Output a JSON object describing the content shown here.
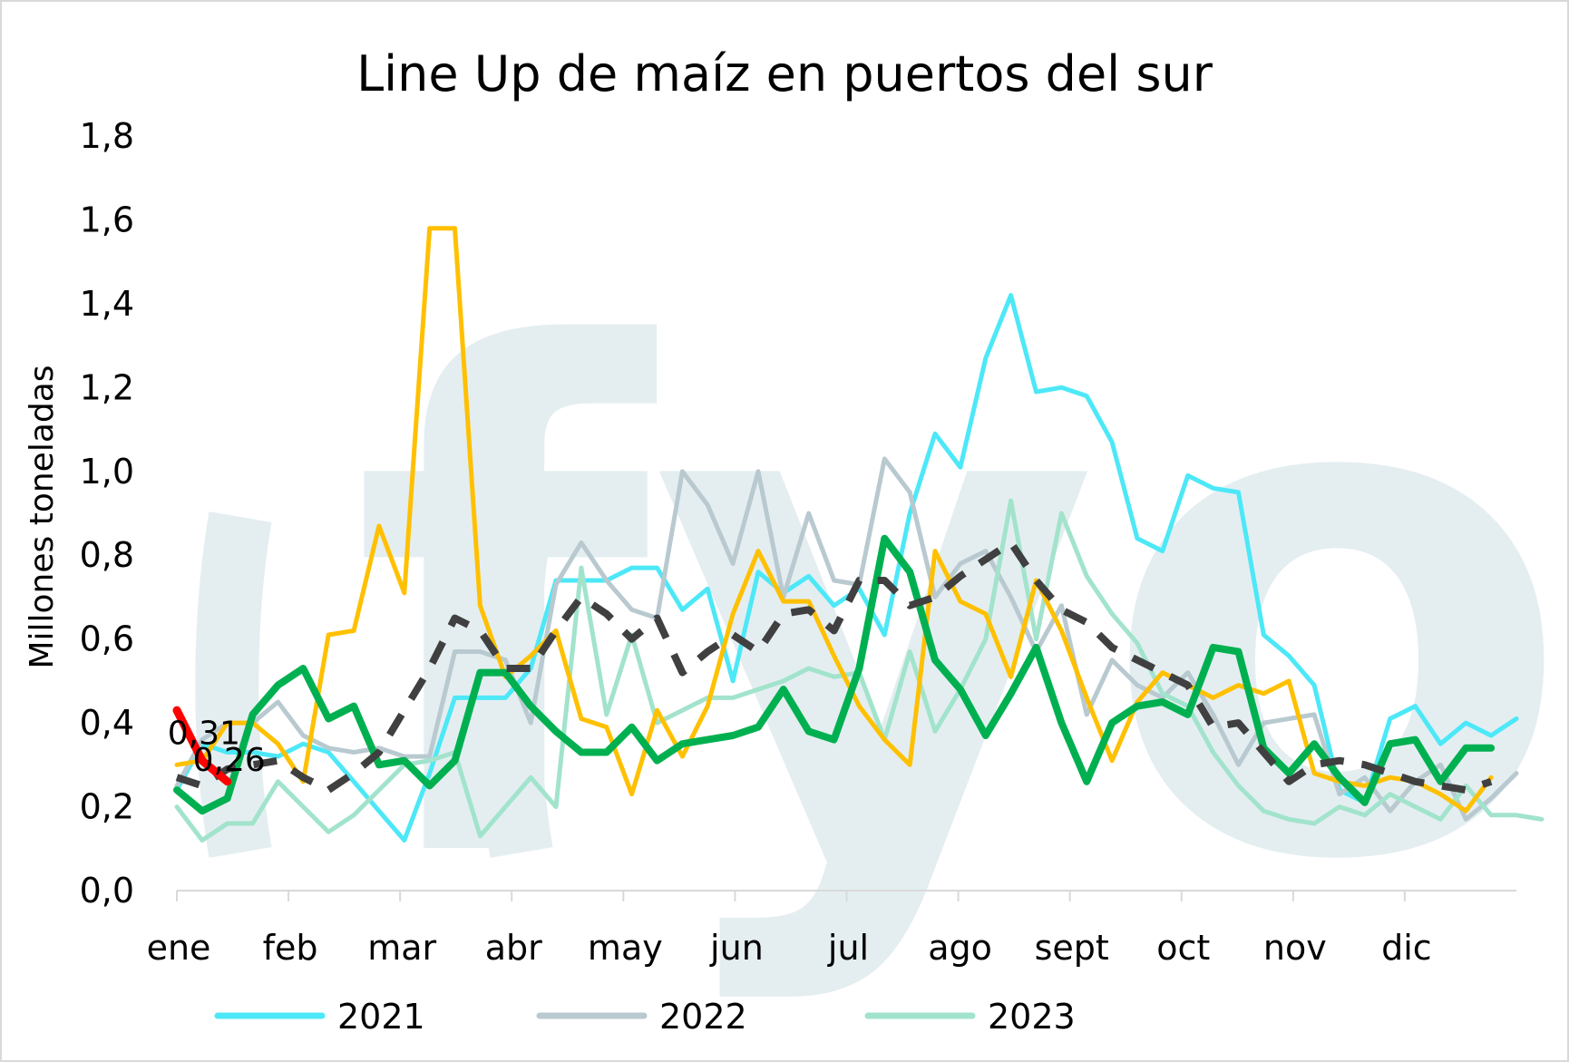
{
  "chart_data": {
    "type": "line",
    "title": "Line Up de maíz en puertos del sur",
    "ylabel": "Millones toneladas",
    "xlabel": "",
    "ylim": [
      0,
      1.8
    ],
    "yticks": [
      "0,0",
      "0,2",
      "0,4",
      "0,6",
      "0,8",
      "1,0",
      "1,2",
      "1,4",
      "1,6",
      "1,8"
    ],
    "months": [
      "ene",
      "feb",
      "mar",
      "abr",
      "may",
      "jun",
      "jul",
      "ago",
      "sept",
      "oct",
      "nov",
      "dic"
    ],
    "week_count": 52,
    "watermark": "fyo",
    "data_labels": [
      "0,31",
      "0,26"
    ],
    "series": [
      {
        "name": "2021",
        "color": "#4de8f7",
        "width": 5,
        "dash": "",
        "values": [
          0.24,
          0.35,
          0.33,
          0.33,
          0.32,
          0.35,
          0.33,
          0.26,
          0.19,
          0.12,
          0.28,
          0.46,
          0.46,
          0.46,
          0.53,
          0.74,
          0.74,
          0.74,
          0.77,
          0.77,
          0.67,
          0.72,
          0.5,
          0.76,
          0.71,
          0.75,
          0.68,
          0.72,
          0.61,
          0.9,
          1.09,
          1.01,
          1.27,
          1.42,
          1.19,
          1.2,
          1.18,
          1.07,
          0.84,
          0.81,
          0.99,
          0.96,
          0.95,
          0.61,
          0.56,
          0.49,
          0.24,
          0.21,
          0.41,
          0.44,
          0.35,
          0.4,
          0.37,
          0.41
        ]
      },
      {
        "name": "2022",
        "color": "#b9c9d0",
        "width": 5,
        "dash": "",
        "values": [
          0.25,
          0.36,
          0.4,
          0.4,
          0.45,
          0.37,
          0.34,
          0.33,
          0.34,
          0.32,
          0.32,
          0.57,
          0.57,
          0.55,
          0.4,
          0.73,
          0.83,
          0.74,
          0.67,
          0.65,
          1.0,
          0.92,
          0.78,
          1.0,
          0.7,
          0.9,
          0.74,
          0.73,
          1.03,
          0.95,
          0.7,
          0.78,
          0.81,
          0.7,
          0.57,
          0.68,
          0.42,
          0.55,
          0.49,
          0.46,
          0.52,
          0.42,
          0.3,
          0.4,
          0.41,
          0.42,
          0.23,
          0.27,
          0.19,
          0.26,
          0.3,
          0.17,
          0.22,
          0.28
        ]
      },
      {
        "name": "2023",
        "color": "#a2e3cc",
        "width": 5,
        "dash": "",
        "values": [
          0.2,
          0.12,
          0.16,
          0.16,
          0.26,
          0.2,
          0.14,
          0.18,
          0.24,
          0.3,
          0.31,
          0.33,
          0.13,
          0.2,
          0.27,
          0.2,
          0.77,
          0.42,
          0.61,
          0.4,
          0.43,
          0.46,
          0.46,
          0.48,
          0.5,
          0.53,
          0.51,
          0.52,
          0.36,
          0.57,
          0.38,
          0.48,
          0.6,
          0.93,
          0.6,
          0.9,
          0.75,
          0.66,
          0.59,
          0.47,
          0.44,
          0.33,
          0.25,
          0.19,
          0.17,
          0.16,
          0.2,
          0.18,
          0.23,
          0.2,
          0.17,
          0.25,
          0.18,
          0.18,
          0.17
        ]
      },
      {
        "name": "",
        "color": "#ffc000",
        "width": 5,
        "dash": "",
        "values": [
          0.3,
          0.31,
          0.4,
          0.4,
          0.35,
          0.26,
          0.61,
          0.62,
          0.87,
          0.71,
          1.58,
          1.58,
          0.68,
          0.51,
          0.56,
          0.62,
          0.41,
          0.39,
          0.23,
          0.43,
          0.32,
          0.44,
          0.66,
          0.81,
          0.69,
          0.69,
          0.56,
          0.44,
          0.36,
          0.3,
          0.81,
          0.69,
          0.66,
          0.51,
          0.74,
          0.62,
          0.46,
          0.31,
          0.45,
          0.52,
          0.49,
          0.46,
          0.49,
          0.47,
          0.5,
          0.28,
          0.26,
          0.25,
          0.27,
          0.26,
          0.23,
          0.19,
          0.27
        ]
      },
      {
        "name": "",
        "color": "#00b050",
        "width": 8,
        "dash": "",
        "values": [
          0.24,
          0.19,
          0.22,
          0.42,
          0.49,
          0.53,
          0.41,
          0.44,
          0.3,
          0.31,
          0.25,
          0.31,
          0.52,
          0.52,
          0.44,
          0.38,
          0.33,
          0.33,
          0.39,
          0.31,
          0.35,
          0.36,
          0.37,
          0.39,
          0.48,
          0.38,
          0.36,
          0.53,
          0.84,
          0.76,
          0.55,
          0.48,
          0.37,
          0.47,
          0.58,
          0.4,
          0.26,
          0.4,
          0.44,
          0.45,
          0.42,
          0.58,
          0.57,
          0.34,
          0.28,
          0.35,
          0.27,
          0.21,
          0.35,
          0.36,
          0.26,
          0.34,
          0.34
        ]
      },
      {
        "name": "",
        "color": "#404040",
        "width": 8,
        "dash": "26,20",
        "values": [
          0.27,
          0.25,
          0.29,
          0.3,
          0.31,
          0.27,
          0.24,
          0.28,
          0.33,
          0.43,
          0.53,
          0.65,
          0.62,
          0.53,
          0.53,
          0.62,
          0.7,
          0.66,
          0.6,
          0.65,
          0.52,
          0.57,
          0.61,
          0.57,
          0.66,
          0.67,
          0.62,
          0.74,
          0.74,
          0.68,
          0.7,
          0.75,
          0.79,
          0.83,
          0.74,
          0.67,
          0.64,
          0.58,
          0.55,
          0.52,
          0.49,
          0.39,
          0.4,
          0.33,
          0.26,
          0.3,
          0.31,
          0.3,
          0.28,
          0.26,
          0.25,
          0.24,
          0.26
        ]
      },
      {
        "name": "",
        "color": "#ff0000",
        "width": 9,
        "dash": "",
        "values": [
          0.43,
          0.31,
          0.26
        ]
      }
    ],
    "legend": [
      {
        "label": "2021",
        "color": "#4de8f7"
      },
      {
        "label": "2022",
        "color": "#b9c9d0"
      },
      {
        "label": "2023",
        "color": "#a2e3cc"
      }
    ],
    "legend_position": "bottom",
    "grid": false
  }
}
